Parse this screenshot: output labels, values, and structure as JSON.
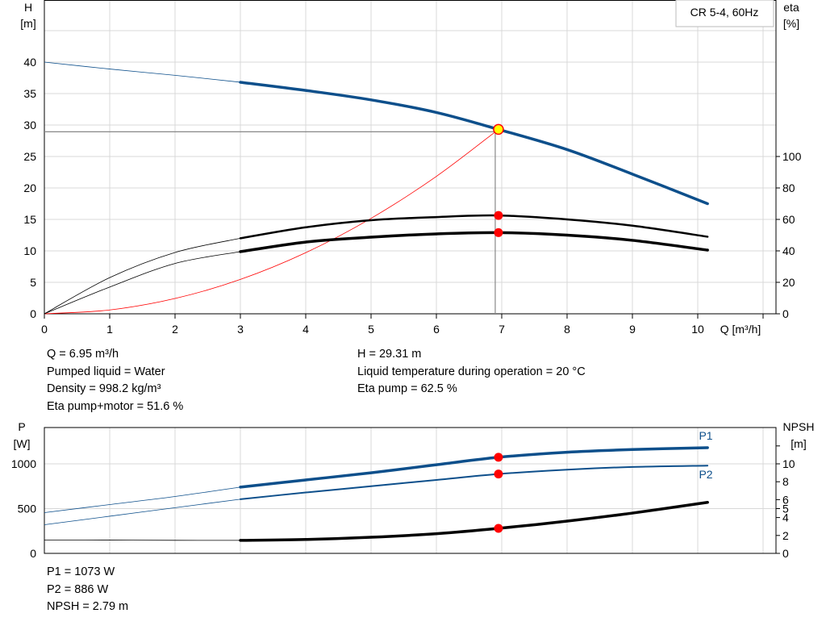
{
  "chart_data": [
    {
      "type": "line",
      "legend_box": "CR 5-4, 60Hz",
      "xlabel": "Q [m³/h]",
      "ylabel_left": [
        "H",
        "[m]"
      ],
      "ylabel_right": [
        "eta",
        "[%]"
      ],
      "xlim": [
        0,
        11
      ],
      "ylim_left": [
        0,
        45
      ],
      "ylim_right": [
        0,
        100
      ],
      "x_ticks": [
        "0",
        "1",
        "2",
        "3",
        "4",
        "5",
        "6",
        "7",
        "8",
        "9",
        "10"
      ],
      "y_left_ticks": [
        "0",
        "5",
        "10",
        "15",
        "20",
        "25",
        "30",
        "35",
        "40"
      ],
      "y_right_ticks": [
        "0",
        "20",
        "40",
        "60",
        "80",
        "100"
      ],
      "grid": true,
      "series": [
        {
          "key": "H",
          "axis": "left",
          "color": "#0d4f8b",
          "x": [
            0,
            1,
            2,
            3,
            4,
            5,
            6,
            6.95,
            8,
            9,
            10.15
          ],
          "y": [
            40,
            38.9,
            37.9,
            36.8,
            35.5,
            34.0,
            32.0,
            29.31,
            26.1,
            22.2,
            17.5
          ],
          "thin_until": 3
        },
        {
          "key": "eta_pump",
          "axis": "right",
          "color": "#000000",
          "x": [
            0,
            1,
            2,
            3,
            4,
            5,
            6,
            6.95,
            8,
            9,
            10.15
          ],
          "y": [
            0,
            23,
            39,
            48,
            55,
            59.5,
            61.5,
            62.5,
            60,
            56,
            49
          ],
          "thin_until": 3
        },
        {
          "key": "eta_pump_motor",
          "axis": "right",
          "color": "#000000",
          "x": [
            0,
            1,
            2,
            3,
            4,
            5,
            6,
            6.95,
            8,
            9,
            10.15
          ],
          "y": [
            0,
            17,
            32,
            39.5,
            45.6,
            48.7,
            50.8,
            51.6,
            50,
            46.7,
            40.5
          ],
          "thin_until": 3,
          "thick": true
        },
        {
          "key": "system",
          "axis": "left",
          "color": "#ff0000",
          "x": [
            0,
            1,
            2,
            3,
            4,
            5,
            6,
            6.95
          ],
          "y": [
            0,
            0.61,
            2.43,
            5.46,
            9.71,
            15.17,
            21.84,
            29.31
          ]
        }
      ],
      "duty_point": {
        "Q": 6.95,
        "H": 29.31,
        "eta_pump": 62.5,
        "eta_pump_motor": 51.6
      }
    },
    {
      "type": "line",
      "ylabel_left": [
        "P",
        "[W]"
      ],
      "ylabel_right": [
        "NPSH",
        "[m]"
      ],
      "xlim": [
        0,
        11
      ],
      "ylim_left": [
        0,
        1400
      ],
      "ylim_right": [
        0,
        14
      ],
      "y_left_ticks": [
        "0",
        "500",
        "1000"
      ],
      "y_right_ticks": [
        "0",
        "2",
        "4",
        "5",
        "6",
        "8",
        "10"
      ],
      "grid": true,
      "series": [
        {
          "name": "P1",
          "axis": "left",
          "color": "#0d4f8b",
          "x": [
            0,
            1,
            2,
            3,
            4,
            5,
            6,
            6.95,
            8,
            9,
            10.15
          ],
          "y": [
            455,
            545,
            635,
            740,
            820,
            900,
            990,
            1073,
            1130,
            1160,
            1180
          ],
          "thin_until": 3,
          "thick": true
        },
        {
          "name": "P2",
          "axis": "left",
          "color": "#0d4f8b",
          "x": [
            0,
            1,
            2,
            3,
            4,
            5,
            6,
            6.95,
            8,
            9,
            10.15
          ],
          "y": [
            320,
            415,
            510,
            605,
            680,
            750,
            820,
            886,
            935,
            965,
            980
          ],
          "thin_until": 3
        },
        {
          "key": "NPSH",
          "axis": "right",
          "color": "#000000",
          "x": [
            0,
            1,
            2,
            3,
            4,
            5,
            6,
            6.95,
            8,
            9,
            10.15
          ],
          "y": [
            1.5,
            1.48,
            1.46,
            1.45,
            1.55,
            1.8,
            2.2,
            2.79,
            3.6,
            4.5,
            5.7
          ],
          "thin_until": 3,
          "thick": true
        }
      ],
      "duty_point": {
        "Q": 6.95,
        "P1": 1073,
        "P2": 886,
        "NPSH": 2.79
      }
    }
  ],
  "info_top_left": [
    "Q = 6.95 m³/h",
    "Pumped liquid = Water",
    "Density = 998.2 kg/m³",
    "Eta pump+motor = 51.6 %"
  ],
  "info_top_right": [
    "H = 29.31 m",
    "Liquid temperature during operation = 20 °C",
    "Eta pump = 62.5 %"
  ],
  "info_bottom": [
    "P1 = 1073 W",
    "P2 = 886 W",
    "NPSH = 2.79 m"
  ],
  "colors": {
    "curve_blue": "#0d4f8b",
    "duty_marker": "#ff0000",
    "operating_point": "#ffff00",
    "grid": "#d8d8d8"
  }
}
